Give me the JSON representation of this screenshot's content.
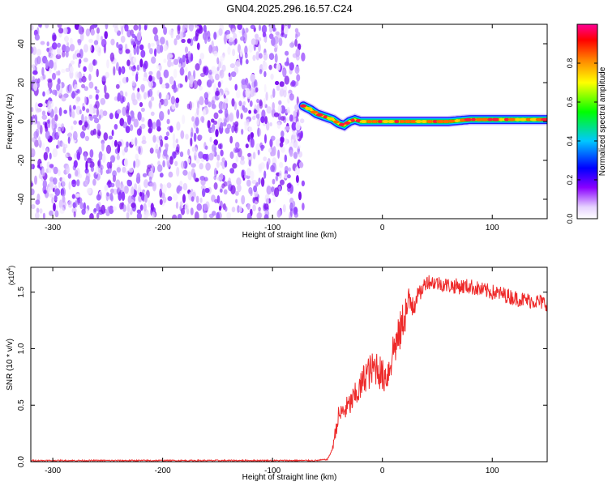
{
  "figure": {
    "title": "GN04.2025.296.16.57.C24"
  },
  "chart_data": [
    {
      "type": "heatmap",
      "title": "",
      "xlabel": "Height of straight line (km)",
      "ylabel": "Frequency (Hz)",
      "xlim": [
        -320,
        150
      ],
      "ylim": [
        -50,
        50
      ],
      "xticks": [
        -300,
        -200,
        -100,
        0,
        100
      ],
      "yticks": [
        -40,
        -20,
        0,
        20,
        40
      ],
      "grid": false,
      "noise_region_x": [
        -320,
        -72
      ],
      "signal_track": {
        "x": [
          -72,
          -65,
          -60,
          -55,
          -50,
          -45,
          -40,
          -35,
          -30,
          -25,
          -20,
          -10,
          0,
          20,
          40,
          60,
          80,
          100,
          120,
          150
        ],
        "frequency": [
          8,
          6,
          4,
          3,
          2,
          1,
          -1,
          -2,
          0,
          1,
          0,
          0,
          0,
          0,
          0,
          0,
          1,
          1,
          1,
          1
        ]
      },
      "colorbar": {
        "label": "Normalized spectral amplitude",
        "range": [
          0.0,
          1.0
        ],
        "ticks": [
          0.0,
          0.2,
          0.4,
          0.6,
          0.8
        ],
        "tick_labels": [
          "0.0",
          "0.2",
          "0.4",
          "0.6",
          "0.8"
        ],
        "colors": [
          "#ffffff",
          "#8a00ff",
          "#0000ff",
          "#00c8ff",
          "#00ff00",
          "#ffff00",
          "#ff8000",
          "#ff0000",
          "#ff0096"
        ]
      }
    },
    {
      "type": "line",
      "title": "",
      "xlabel": "Height of straight line (km)",
      "ylabel": "SNR (10 * v/v)",
      "y_multiplier": "(x10",
      "y_multiplier_exp": "4",
      "y_multiplier_close": ")",
      "xlim": [
        -320,
        150
      ],
      "ylim": [
        0,
        1.72
      ],
      "xticks": [
        -300,
        -200,
        -100,
        0,
        100
      ],
      "yticks": [
        0.0,
        0.5,
        1.0,
        1.5
      ],
      "ytick_labels": [
        "0.0",
        "0.5",
        "1.0",
        "1.5"
      ],
      "grid": false,
      "line_color": "#ee2a2a",
      "series": [
        {
          "x": [
            -320,
            -250,
            -150,
            -60,
            -50,
            -46,
            -44,
            -42,
            -40,
            -30,
            -20,
            -15,
            -10,
            -5,
            0,
            5,
            10,
            15,
            20,
            25,
            30,
            35,
            40,
            50,
            60,
            70,
            80,
            90,
            100,
            110,
            120,
            130,
            140,
            150
          ],
          "values": [
            0.01,
            0.01,
            0.01,
            0.01,
            0.02,
            0.1,
            0.2,
            0.3,
            0.4,
            0.5,
            0.65,
            0.78,
            0.8,
            0.85,
            0.75,
            0.78,
            1.0,
            1.1,
            1.3,
            1.4,
            1.45,
            1.5,
            1.6,
            1.58,
            1.56,
            1.55,
            1.55,
            1.52,
            1.5,
            1.48,
            1.45,
            1.43,
            1.42,
            1.4
          ]
        }
      ]
    }
  ]
}
